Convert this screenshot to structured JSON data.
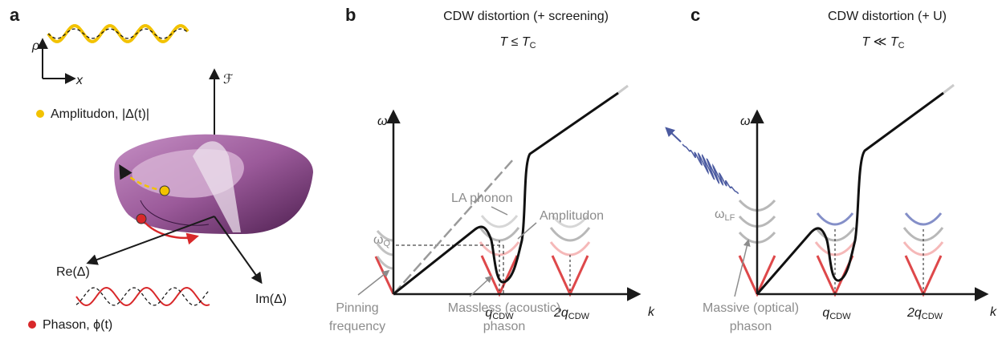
{
  "panel_a": {
    "letter": "a",
    "rho": "ρ",
    "x": "x",
    "amplitudon": "Amplitudon, |Δ(t)|",
    "free_energy": "ℱ",
    "re_axis": "Re(Δ)",
    "im_axis": "Im(Δ)",
    "phason": "Phason, ϕ(t)"
  },
  "panel_b": {
    "letter": "b",
    "title": "CDW distortion (+ screening)",
    "temperature": {
      "main": "T ≤ T",
      "sub": "C"
    },
    "omega": "ω",
    "omega_q": {
      "main": "ω",
      "sub": "Q"
    },
    "la_phonon": "LA phonon",
    "amplitudon": "Amplitudon",
    "q": {
      "main": "q",
      "sub": "CDW"
    },
    "q2": {
      "main": "2q",
      "sub": "CDW"
    },
    "k": "k",
    "pinning": [
      "Pinning",
      "frequency"
    ],
    "massless": [
      "Massless (acoustic)",
      "phason"
    ]
  },
  "panel_c": {
    "letter": "c",
    "title": "CDW distortion (+ U)",
    "temperature": {
      "main": "T ≪ T",
      "sub": "C"
    },
    "omega": "ω",
    "omega_lf": {
      "main": "ω",
      "sub": "LF"
    },
    "q": {
      "main": "q",
      "sub": "CDW"
    },
    "q2": {
      "main": "2q",
      "sub": "CDW"
    },
    "k": "k",
    "massive": [
      "Massive (optical)",
      "phason"
    ]
  }
}
